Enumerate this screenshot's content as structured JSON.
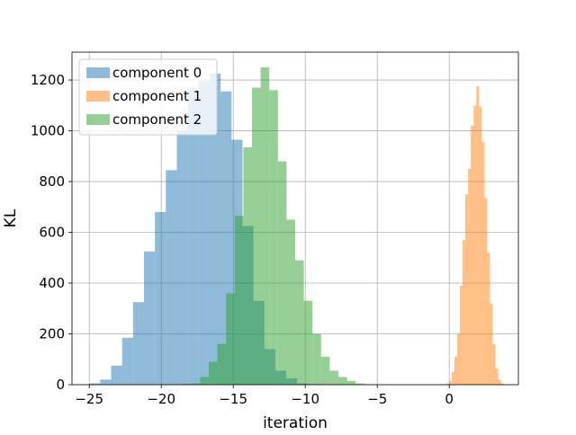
{
  "chart_data": {
    "type": "histogram",
    "xlabel": "iteration",
    "ylabel": "KL",
    "xlim": [
      -26.2,
      4.8
    ],
    "ylim": [
      0,
      1310
    ],
    "xticks": [
      -25,
      -20,
      -15,
      -10,
      -5,
      0
    ],
    "xtick_labels": [
      "−25",
      "−20",
      "−15",
      "−10",
      "−5",
      "0"
    ],
    "yticks": [
      0,
      200,
      400,
      600,
      800,
      1000,
      1200
    ],
    "ytick_labels": [
      "0",
      "200",
      "400",
      "600",
      "800",
      "1000",
      "1200"
    ],
    "grid": true,
    "legend_position": "upper-left",
    "series": [
      {
        "name": "component 0",
        "color": "#1f77b4",
        "alpha": 0.5,
        "bin_start": -25.0,
        "bin_width": 0.76,
        "counts": [
          5,
          20,
          75,
          185,
          325,
          525,
          680,
          845,
          1000,
          1170,
          1195,
          1225,
          1155,
          965,
          625,
          330,
          140,
          55,
          25,
          5,
          3,
          2
        ]
      },
      {
        "name": "component 1",
        "color": "#ff7f0e",
        "alpha": 0.5,
        "bin_start": -0.4,
        "bin_width": 0.19,
        "counts": [
          2,
          5,
          15,
          50,
          110,
          200,
          390,
          570,
          750,
          850,
          1020,
          1100,
          1175,
          1095,
          955,
          735,
          520,
          320,
          160,
          65,
          20,
          5
        ]
      },
      {
        "name": "component 2",
        "color": "#2ca02c",
        "alpha": 0.5,
        "bin_start": -18.5,
        "bin_width": 0.6,
        "counts": [
          3,
          5,
          30,
          90,
          160,
          360,
          665,
          935,
          1170,
          1250,
          1160,
          880,
          650,
          490,
          330,
          200,
          110,
          55,
          30,
          15,
          5,
          2
        ]
      }
    ]
  }
}
